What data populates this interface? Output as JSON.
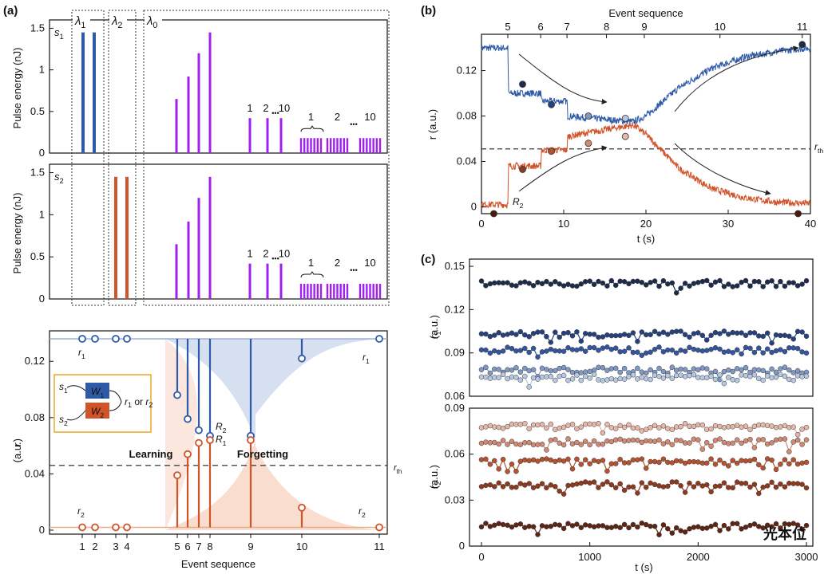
{
  "chart_data": [
    {
      "id": "a-top",
      "type": "bar",
      "panel_label": "(a)",
      "title": "s1",
      "ylabel": "Pulse energy (nJ)",
      "ylim": [
        0,
        1.6
      ],
      "yticks": [
        "0",
        "0.5",
        "1",
        "1.5"
      ],
      "regions": [
        "λ1",
        "λ2",
        "λ0"
      ],
      "groups": [
        {
          "name": "λ1 pulses",
          "color": "#2e5aa8",
          "values": [
            1.45,
            1.45
          ]
        },
        {
          "name": "single pulses",
          "color": "#a020f0",
          "values": [
            0.65,
            0.92,
            1.2,
            1.45
          ]
        },
        {
          "name": "three pulses",
          "color": "#a020f0",
          "values": [
            0.42,
            0.42,
            0.42
          ],
          "labels": [
            "1",
            "2",
            "10"
          ]
        },
        {
          "name": "pulse trains",
          "color": "#a020f0",
          "values": [
            0.18,
            0.18,
            0.18
          ],
          "labels": [
            "1",
            "2",
            "10"
          ]
        }
      ],
      "ellipsis": "•••"
    },
    {
      "id": "a-mid",
      "type": "bar",
      "title": "s2",
      "ylabel": "Pulse energy (nJ)",
      "ylim": [
        0,
        1.6
      ],
      "yticks": [
        "0",
        "0.5",
        "1",
        "1.5"
      ],
      "groups": [
        {
          "name": "λ2 pulses",
          "color": "#d0532a",
          "values": [
            1.45,
            1.45
          ]
        },
        {
          "name": "single pulses",
          "color": "#a020f0",
          "values": [
            0.65,
            0.92,
            1.2,
            1.45
          ]
        },
        {
          "name": "three pulses",
          "color": "#a020f0",
          "values": [
            0.42,
            0.42,
            0.42
          ],
          "labels": [
            "1",
            "2",
            "10"
          ]
        },
        {
          "name": "pulse trains",
          "color": "#a020f0",
          "values": [
            0.18,
            0.18,
            0.18
          ],
          "labels": [
            "1",
            "2",
            "10"
          ]
        }
      ],
      "ellipsis": "•••"
    },
    {
      "id": "a-bottom",
      "type": "scatter",
      "xlabel": "Event sequence",
      "ylabel": "r (a.u.)",
      "xticks": [
        "1",
        "2",
        "3",
        "4",
        "5",
        "6",
        "7",
        "8",
        "9",
        "10",
        "11"
      ],
      "yticks": [
        "0",
        "0.04",
        "0.08",
        "0.12"
      ],
      "ylim": [
        0,
        0.136
      ],
      "threshold": {
        "value": 0.046,
        "label": "rth"
      },
      "series": [
        {
          "name": "r1",
          "color": "#2e5aa8",
          "baseline": 0.136,
          "x": [
            1,
            2,
            3,
            4,
            5,
            6,
            7,
            8,
            9,
            10,
            11
          ],
          "values": [
            0.136,
            0.136,
            0.136,
            0.136,
            0.096,
            0.079,
            0.071,
            0.067,
            0.067,
            0.122,
            0.136
          ]
        },
        {
          "name": "r2",
          "color": "#d0532a",
          "baseline": 0.002,
          "x": [
            1,
            2,
            3,
            4,
            5,
            6,
            7,
            8,
            9,
            10,
            11
          ],
          "values": [
            0.002,
            0.002,
            0.002,
            0.002,
            0.039,
            0.054,
            0.062,
            0.064,
            0.064,
            0.016,
            0.002
          ]
        }
      ],
      "annotations": [
        "Learning",
        "Forgetting",
        "R2",
        "R1"
      ],
      "inset": {
        "inputs": [
          "s1",
          "s2"
        ],
        "weights": [
          "W1",
          "W2"
        ],
        "output": "r1 or r2"
      }
    },
    {
      "id": "b",
      "type": "line",
      "panel_label": "(b)",
      "xlabel": "t (s)",
      "ylabel": "r (a.u.)",
      "xlim": [
        0,
        40
      ],
      "ylim": [
        -0.006,
        0.152
      ],
      "xticks": [
        "0",
        "10",
        "20",
        "30",
        "40"
      ],
      "yticks": [
        "0",
        "0.04",
        "0.08",
        "0.12"
      ],
      "top_axis": {
        "label": "Event sequence",
        "ticks": [
          "5",
          "6",
          "7",
          "8",
          "9",
          "10",
          "11"
        ],
        "positions": [
          3.2,
          7.2,
          10.4,
          15.2,
          19.8,
          29,
          39
        ]
      },
      "threshold": {
        "value": 0.051,
        "label": "rth"
      },
      "series": [
        {
          "name": "R1",
          "color": "#2e5aa8",
          "x": [
            0,
            3.2,
            3.3,
            7.2,
            7.3,
            10.4,
            10.5,
            15,
            18.5,
            20,
            24,
            28,
            32,
            36,
            40
          ],
          "values": [
            0.14,
            0.14,
            0.1,
            0.1,
            0.093,
            0.093,
            0.08,
            0.077,
            0.075,
            0.08,
            0.105,
            0.122,
            0.132,
            0.137,
            0.14
          ]
        },
        {
          "name": "R2",
          "color": "#d0532a",
          "x": [
            0,
            3.2,
            3.3,
            7.2,
            7.3,
            10.4,
            10.5,
            15,
            18.5,
            20,
            24,
            28,
            32,
            36,
            40
          ],
          "values": [
            0.002,
            0.002,
            0.036,
            0.036,
            0.05,
            0.05,
            0.062,
            0.068,
            0.072,
            0.064,
            0.034,
            0.016,
            0.008,
            0.004,
            0.003
          ]
        }
      ],
      "markers": {
        "r1": {
          "x": [
            5,
            8.5,
            13,
            17.5,
            39
          ],
          "values": [
            0.108,
            0.09,
            0.08,
            0.078,
            0.143
          ]
        },
        "r2": {
          "x": [
            1.5,
            5,
            8.5,
            13,
            17.5,
            38.5
          ],
          "values": [
            -0.006,
            0.033,
            0.049,
            0.056,
            0.062,
            -0.006
          ]
        }
      },
      "annotations": [
        "R2"
      ]
    },
    {
      "id": "c-top",
      "type": "line",
      "panel_label": "(c)",
      "ylabel": "r1 (a.u.)",
      "ylim": [
        0.06,
        0.155
      ],
      "yticks": [
        "0.06",
        "0.09",
        "0.12",
        "0.15"
      ],
      "xlim": [
        0,
        3000
      ],
      "series": [
        {
          "name": "r1 level 1",
          "color": "#1d2c4d",
          "level": 0.138
        },
        {
          "name": "r1 level 2",
          "color": "#26427e",
          "level": 0.103
        },
        {
          "name": "r1 level 3",
          "color": "#34569e",
          "level": 0.092
        },
        {
          "name": "r1 level 4",
          "color": "#7f98c4",
          "level": 0.078
        },
        {
          "name": "r1 level 5",
          "color": "#b6c8e2",
          "level": 0.073
        }
      ]
    },
    {
      "id": "c-bottom",
      "type": "line",
      "xlabel": "t (s)",
      "ylabel": "r2 (a.u.)",
      "ylim": [
        0,
        0.09
      ],
      "yticks": [
        "0",
        "0.03",
        "0.06",
        "0.09"
      ],
      "xlim": [
        0,
        3000
      ],
      "xticks": [
        "0",
        "1000",
        "2000",
        "3000"
      ],
      "series": [
        {
          "name": "r2 level 1",
          "color": "#e6b7a8",
          "level": 0.078
        },
        {
          "name": "r2 level 2",
          "color": "#d08a73",
          "level": 0.068
        },
        {
          "name": "r2 level 3",
          "color": "#b5522f",
          "level": 0.055
        },
        {
          "name": "r2 level 4",
          "color": "#8e3a1e",
          "level": 0.04
        },
        {
          "name": "r2 level 5",
          "color": "#5e2414",
          "level": 0.013
        }
      ]
    }
  ],
  "labels": {
    "panel_a": "(a)",
    "panel_b": "(b)",
    "panel_c": "(c)",
    "lambda1": "λ1",
    "lambda2": "λ2",
    "lambda0": "λ0",
    "s1": "s1",
    "s2": "s2",
    "W1": "W1",
    "W2": "W2",
    "or_text": "r1 or r2",
    "r1": "r1",
    "r2": "r2",
    "R1": "R1",
    "R2": "R2",
    "rth": "rth",
    "learning": "Learning",
    "forgetting": "Forgetting",
    "event_sequence": "Event sequence",
    "time_axis": "t (s)",
    "pulse_energy": "Pulse energy (nJ)",
    "r_axis": "r (a.u.)",
    "r1_axis": "r1 (a.u.)",
    "r2_axis": "r2 (a.u.)",
    "watermark": "光本位"
  },
  "colors": {
    "blue": "#2e5aa8",
    "orange": "#d0532a",
    "purple": "#a020f0",
    "dash": "#222222"
  }
}
